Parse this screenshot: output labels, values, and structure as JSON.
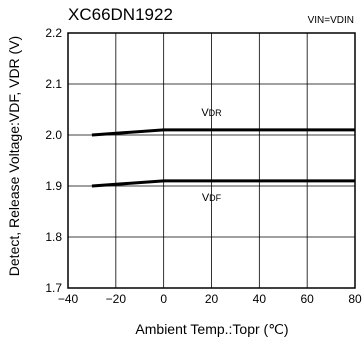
{
  "chart_data": {
    "type": "line",
    "title": "XC66DN1922",
    "condition": "VIN=VDIN",
    "xlabel": "Ambient Temp.:Topr (℃)",
    "ylabel": "Detect, Release Voltage:VDF, VDR (V)",
    "xlim": [
      -40,
      80
    ],
    "ylim": [
      1.7,
      2.2
    ],
    "x_ticks": [
      "-40",
      "-20",
      "0",
      "20",
      "40",
      "60",
      "80"
    ],
    "y_ticks": [
      "1.7",
      "1.8",
      "1.9",
      "2.0",
      "2.1",
      "2.2"
    ],
    "grid": true,
    "series": [
      {
        "name": "VDR",
        "x": [
          -30,
          0,
          80
        ],
        "y": [
          2.0,
          2.01,
          2.01
        ]
      },
      {
        "name": "VDF",
        "x": [
          -30,
          0,
          80
        ],
        "y": [
          1.9,
          1.91,
          1.91
        ]
      }
    ]
  }
}
